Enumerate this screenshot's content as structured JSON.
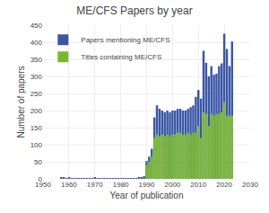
{
  "chart_data": {
    "type": "bar",
    "title": "ME/CFS Papers by year",
    "xlabel": "Year of publication",
    "ylabel": "Number of papers",
    "x": [
      1957,
      1958,
      1959,
      1960,
      1961,
      1962,
      1963,
      1964,
      1965,
      1966,
      1967,
      1968,
      1969,
      1970,
      1971,
      1972,
      1973,
      1974,
      1975,
      1976,
      1977,
      1978,
      1979,
      1980,
      1981,
      1982,
      1983,
      1984,
      1985,
      1986,
      1987,
      1988,
      1989,
      1990,
      1991,
      1992,
      1993,
      1994,
      1995,
      1996,
      1997,
      1998,
      1999,
      2000,
      2001,
      2002,
      2003,
      2004,
      2005,
      2006,
      2007,
      2008,
      2009,
      2010,
      2011,
      2012,
      2013,
      2014,
      2015,
      2016,
      2017,
      2018,
      2019,
      2020,
      2021,
      2022,
      2023
    ],
    "series": [
      {
        "name": "Papers mentioning ME/CFS",
        "color": "#3a56a5",
        "values": [
          3,
          5,
          2,
          5,
          1,
          1,
          1,
          1,
          1,
          1,
          1,
          1,
          1,
          3,
          1,
          1,
          1,
          1,
          1,
          1,
          1,
          1,
          1,
          2,
          1,
          1,
          1,
          1,
          2,
          2,
          3,
          5,
          8,
          52,
          65,
          88,
          180,
          215,
          205,
          200,
          195,
          200,
          195,
          200,
          200,
          205,
          205,
          200,
          200,
          205,
          210,
          215,
          240,
          260,
          235,
          375,
          340,
          300,
          330,
          305,
          308,
          330,
          338,
          425,
          380,
          330,
          402
        ]
      },
      {
        "name": "Titles containing ME/CFS",
        "color": "#7ab830",
        "values": [
          0,
          0,
          0,
          0,
          0,
          0,
          0,
          0,
          0,
          0,
          0,
          0,
          0,
          0,
          0,
          0,
          0,
          0,
          0,
          0,
          0,
          0,
          0,
          0,
          0,
          0,
          0,
          0,
          0,
          0,
          0,
          0,
          0,
          40,
          50,
          65,
          120,
          130,
          125,
          130,
          125,
          130,
          125,
          130,
          130,
          135,
          135,
          130,
          130,
          135,
          130,
          135,
          135,
          155,
          120,
          195,
          190,
          155,
          190,
          185,
          190,
          190,
          195,
          225,
          185,
          185,
          185
        ]
      }
    ],
    "xlim": [
      1950,
      2030
    ],
    "ylim": [
      0,
      450
    ],
    "xticks": [
      1950,
      1960,
      1970,
      1980,
      1990,
      2000,
      2010,
      2020,
      2030
    ],
    "yticks": [
      0,
      50,
      100,
      150,
      200,
      250,
      300,
      350,
      400,
      450
    ],
    "stacked": false,
    "grid": true,
    "legend": "upper left"
  }
}
